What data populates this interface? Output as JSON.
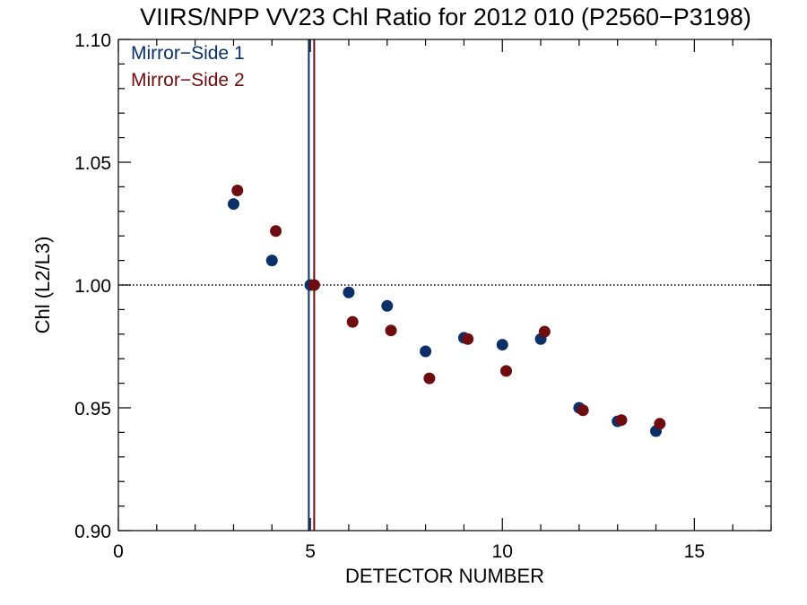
{
  "chart_data": {
    "type": "scatter",
    "title": "VIIRS/NPP VV23 Chl Ratio for 2012 010 (P2560−P3198)",
    "xlabel": "DETECTOR NUMBER",
    "ylabel": "Chl (L2/L3)",
    "xlim": [
      0,
      17
    ],
    "ylim": [
      0.9,
      1.1
    ],
    "x_ticks": [
      0,
      5,
      10,
      15
    ],
    "x_tick_labels": [
      "0",
      "5",
      "10",
      "15"
    ],
    "x_minor_step": 1,
    "y_ticks": [
      0.9,
      0.95,
      1.0,
      1.05,
      1.1
    ],
    "y_tick_labels": [
      "0.90",
      "0.95",
      "1.00",
      "1.05",
      "1.10"
    ],
    "y_minor_step": 0.01,
    "reference_line": {
      "y": 1.0,
      "style": "dotted"
    },
    "grid": false,
    "legend_position": "top-left",
    "series": [
      {
        "name": "Mirror−Side 1",
        "color": "#0b3068",
        "reference_x": 4.96,
        "x": [
          3,
          4,
          5,
          6,
          7,
          8,
          9,
          10,
          11,
          12,
          13,
          14
        ],
        "y": [
          1.033,
          1.01,
          1.0,
          0.997,
          0.9915,
          0.973,
          0.9785,
          0.9757,
          0.978,
          0.95,
          0.9445,
          0.9405
        ]
      },
      {
        "name": "Mirror−Side 2",
        "color": "#6e0d10",
        "reference_x": 5.1,
        "x": [
          3.1,
          4.1,
          5.1,
          6.1,
          7.1,
          8.1,
          9.1,
          10.1,
          11.1,
          12.1,
          13.1,
          14.1
        ],
        "y": [
          1.0385,
          1.022,
          1.0,
          0.985,
          0.9815,
          0.962,
          0.978,
          0.965,
          0.981,
          0.949,
          0.945,
          0.9435
        ]
      }
    ]
  }
}
